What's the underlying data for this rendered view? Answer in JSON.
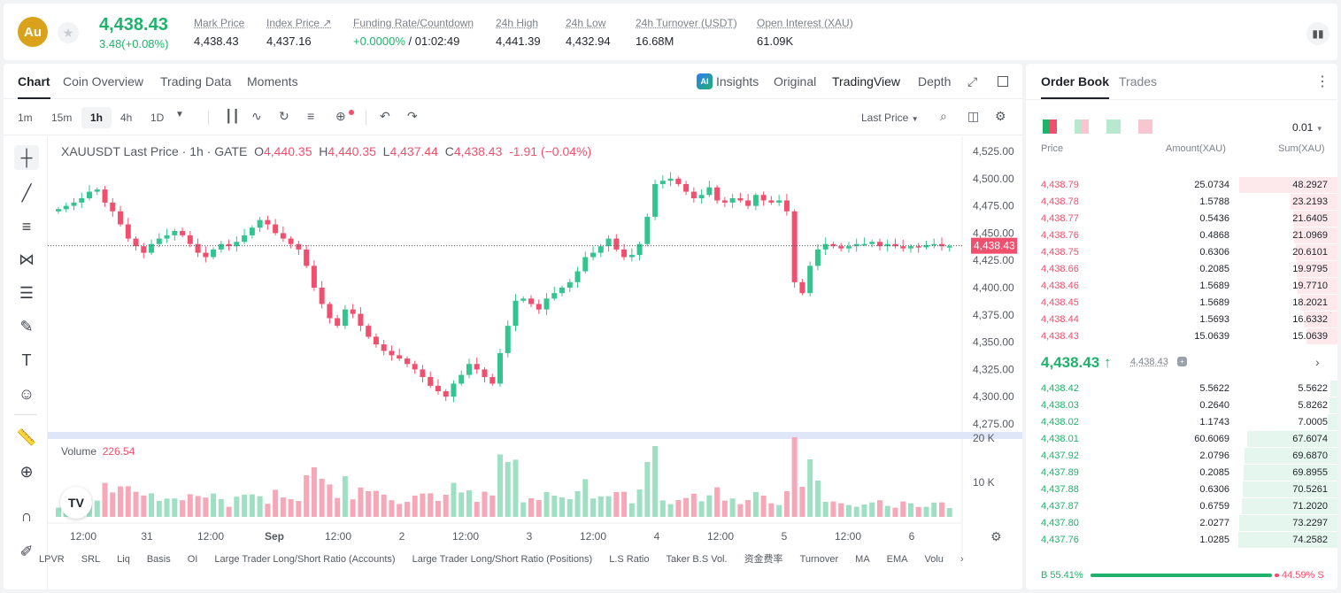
{
  "header": {
    "coin_logo": "Au",
    "last_price": "4,438.43",
    "change": "3.48(+0.08%)",
    "stats": [
      {
        "label": "Mark Price",
        "value": "4,438.43"
      },
      {
        "label": "Index Price ↗",
        "value": "4,437.16"
      },
      {
        "label": "Funding Rate/Countdown",
        "value": "+0.0000%",
        "value2": " / 01:02:49"
      },
      {
        "label": "24h High",
        "value": "4,441.39"
      },
      {
        "label": "24h Low",
        "value": "4,432.94"
      },
      {
        "label": "24h Turnover (USDT)",
        "value": "16.68M"
      },
      {
        "label": "Open Interest (XAU)",
        "value": "61.09K"
      }
    ]
  },
  "chart_tabs": {
    "chart": "Chart",
    "overview": "Coin Overview",
    "trading_data": "Trading Data",
    "moments": "Moments",
    "insights": "Insights",
    "original": "Original",
    "tradingview": "TradingView",
    "depth": "Depth"
  },
  "toolbar": {
    "timeframes": [
      "1m",
      "15m",
      "1h",
      "4h",
      "1D"
    ],
    "price_type": "Last Price"
  },
  "legend": {
    "symbol": "XAUUSDT Last Price · 1h · GATE",
    "o": "4,440.35",
    "h": "4,440.35",
    "l": "4,437.44",
    "c": "4,438.43",
    "chg": "-1.91 (−0.04%)",
    "volume_label": "Volume",
    "volume_value": "226.54"
  },
  "chart_data": {
    "type": "candlestick",
    "y_ticks": [
      "4,525.00",
      "4,500.00",
      "4,475.00",
      "4,450.00",
      "4,425.00",
      "4,400.00",
      "4,375.00",
      "4,350.00",
      "4,325.00",
      "4,300.00",
      "4,275.00"
    ],
    "vol_ticks": [
      "20 K",
      "10 K"
    ],
    "x_ticks": [
      "12:00",
      "31",
      "12:00",
      "Sep",
      "12:00",
      "2",
      "12:00",
      "3",
      "12:00",
      "4",
      "12:00",
      "5",
      "12:00",
      "6"
    ],
    "last_price_label": "4,438.43",
    "last_volume_label": "226.54",
    "close_path": [
      4472,
      4475,
      4478,
      4482,
      4488,
      4490,
      4478,
      4470,
      4458,
      4445,
      4438,
      4432,
      4440,
      4445,
      4448,
      4452,
      4448,
      4440,
      4432,
      4428,
      4435,
      4440,
      4438,
      4442,
      4448,
      4455,
      4462,
      4458,
      4450,
      4445,
      4440,
      4435,
      4420,
      4400,
      4385,
      4372,
      4365,
      4380,
      4376,
      4365,
      4355,
      4348,
      4342,
      4338,
      4335,
      4330,
      4325,
      4318,
      4310,
      4305,
      4300,
      4312,
      4320,
      4330,
      4325,
      4318,
      4312,
      4340,
      4365,
      4388,
      4390,
      4385,
      4380,
      4390,
      4395,
      4400,
      4405,
      4415,
      4428,
      4432,
      4438,
      4445,
      4435,
      4428,
      4430,
      4440,
      4465,
      4495,
      4498,
      4500,
      4495,
      4488,
      4482,
      4485,
      4492,
      4480,
      4478,
      4482,
      4480,
      4475,
      4485,
      4480,
      4478,
      4480,
      4470,
      4405,
      4395,
      4420,
      4435,
      4440,
      4438,
      4436,
      4438,
      4440,
      4440,
      4442,
      4438,
      4440,
      4438,
      4436,
      4438,
      4437,
      4439,
      4440,
      4438,
      4438
    ]
  },
  "orderbook": {
    "tabs": [
      "Order Book",
      "Trades"
    ],
    "precision": "0.01",
    "headers": [
      "Price",
      "Amount(XAU)",
      "Sum(XAU)"
    ],
    "asks": [
      [
        "4,438.79",
        "25.0734",
        "48.2927"
      ],
      [
        "4,438.78",
        "1.5788",
        "23.2193"
      ],
      [
        "4,438.77",
        "0.5436",
        "21.6405"
      ],
      [
        "4,438.76",
        "0.4868",
        "21.0969"
      ],
      [
        "4,438.75",
        "0.6306",
        "20.6101"
      ],
      [
        "4,438.66",
        "0.2085",
        "19.9795"
      ],
      [
        "4,438.46",
        "1.5689",
        "19.7710"
      ],
      [
        "4,438.45",
        "1.5689",
        "18.2021"
      ],
      [
        "4,438.44",
        "1.5693",
        "16.6332"
      ],
      [
        "4,438.43",
        "15.0639",
        "15.0639"
      ]
    ],
    "mid_price": "4,438.43 ↑",
    "mid_mark": "4,438.43",
    "bids": [
      [
        "4,438.42",
        "5.5622",
        "5.5622"
      ],
      [
        "4,438.03",
        "0.2640",
        "5.8262"
      ],
      [
        "4,438.02",
        "1.1743",
        "7.0005"
      ],
      [
        "4,438.01",
        "60.6069",
        "67.6074"
      ],
      [
        "4,437.92",
        "2.0796",
        "69.6870"
      ],
      [
        "4,437.89",
        "0.2085",
        "69.8955"
      ],
      [
        "4,437.88",
        "0.6306",
        "70.5261"
      ],
      [
        "4,437.87",
        "0.6759",
        "71.2020"
      ],
      [
        "4,437.80",
        "2.0277",
        "73.2297"
      ],
      [
        "4,437.76",
        "1.0285",
        "74.2582"
      ]
    ],
    "buy_ratio": "B 55.41%",
    "sell_ratio": "44.59% S"
  },
  "bottom_indicators": [
    "LPVR",
    "SRL",
    "Liq",
    "Basis",
    "OI",
    "Large Trader Long/Short Ratio (Accounts)",
    "Large Trader Long/Short Ratio (Positions)",
    "L.S Ratio",
    "Taker B.S Vol.",
    "资金费率",
    "Turnover",
    "MA",
    "EMA",
    "Volu"
  ]
}
